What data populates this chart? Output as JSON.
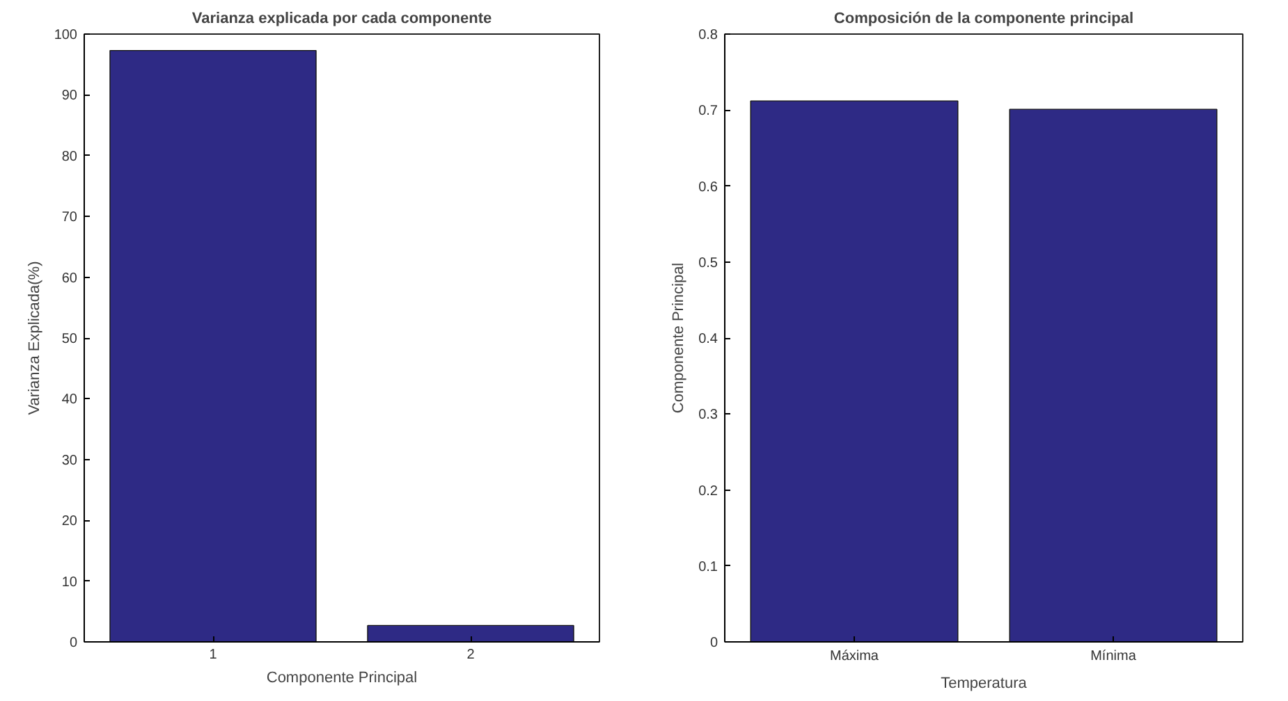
{
  "chart_data": [
    {
      "type": "bar",
      "title": "Varianza explicada por cada componente",
      "xlabel": "Componente Principal",
      "ylabel": "Varianza Explicada(%)",
      "categories": [
        "1",
        "2"
      ],
      "values": [
        97.3,
        2.7
      ],
      "color": "#2e2a85",
      "ylim": [
        0,
        100
      ],
      "yticks": [
        0,
        10,
        20,
        30,
        40,
        50,
        60,
        70,
        80,
        90,
        100
      ],
      "grid": false
    },
    {
      "type": "bar",
      "title": "Composición de la componente principal",
      "xlabel": "Temperatura",
      "ylabel": "Componente Principal",
      "categories": [
        "Máxima",
        "Mínima"
      ],
      "values": [
        0.712,
        0.701
      ],
      "color": "#2e2a85",
      "ylim": [
        0,
        0.8
      ],
      "yticks": [
        0,
        0.1,
        0.2,
        0.3,
        0.4,
        0.5,
        0.6,
        0.7,
        0.8
      ],
      "grid": false
    }
  ]
}
